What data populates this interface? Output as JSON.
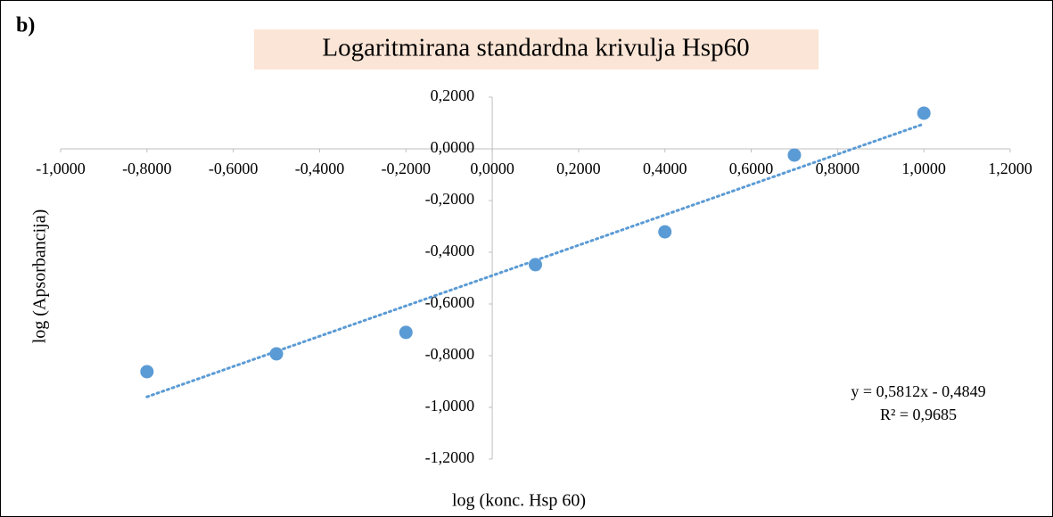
{
  "chart_data": {
    "type": "scatter",
    "panel_label": "b)",
    "title": "Logaritmirana standardna krivulja Hsp60",
    "x_label": "log (konc. Hsp 60)",
    "y_label": "log (Apsorbancija)",
    "annotations": [
      "y = 0,5812x - 0,4849",
      "R² = 0,9685"
    ],
    "series": [
      {
        "name": "Hsp60",
        "color": "#5b9bd5",
        "x": [
          -0.8,
          -0.5,
          -0.2,
          0.1,
          0.4,
          0.7,
          1.0
        ],
        "values": [
          -0.862,
          -0.793,
          -0.71,
          -0.448,
          -0.321,
          -0.024,
          0.138
        ]
      }
    ],
    "trendline": {
      "style": "dotted",
      "color": "#5b9bd5"
    },
    "xlim": [
      -1,
      1.2
    ],
    "xticks": [
      {
        "value": -1,
        "label": "-1,0000"
      },
      {
        "value": -0.8,
        "label": "-0,8000"
      },
      {
        "value": -0.6,
        "label": "-0,6000"
      },
      {
        "value": -0.4,
        "label": "-0,4000"
      },
      {
        "value": -0.2,
        "label": "-0,2000"
      },
      {
        "value": 0,
        "label": "0,0000"
      },
      {
        "value": 0.2,
        "label": "0,2000"
      },
      {
        "value": 0.4,
        "label": "0,4000"
      },
      {
        "value": 0.6,
        "label": "0,6000"
      },
      {
        "value": 0.8,
        "label": "0,8000"
      },
      {
        "value": 1,
        "label": "1,0000"
      },
      {
        "value": 1.2,
        "label": "1,2000"
      }
    ],
    "ylim": [
      -1.2,
      0.2
    ],
    "yticks": [
      {
        "value": 0.2,
        "label": "0,2000"
      },
      {
        "value": 0,
        "label": "0,0000"
      },
      {
        "value": -0.2,
        "label": "-0,2000"
      },
      {
        "value": -0.4,
        "label": "-0,4000"
      },
      {
        "value": -0.6,
        "label": "-0,6000"
      },
      {
        "value": -0.8,
        "label": "-0,8000"
      },
      {
        "value": -1,
        "label": "-1,0000"
      },
      {
        "value": -1.2,
        "label": "-1,2000"
      }
    ]
  }
}
